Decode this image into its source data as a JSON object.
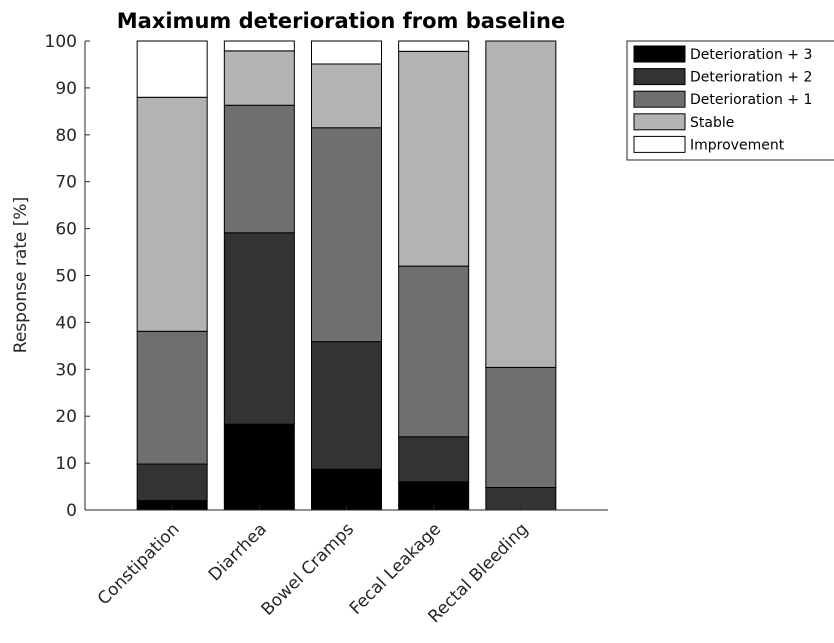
{
  "chart_data": {
    "type": "bar",
    "stacked": true,
    "title": "Maximum deterioration from baseline",
    "xlabel": "",
    "ylabel": "Response rate [%]",
    "ylim": [
      0,
      100
    ],
    "yticks": [
      0,
      10,
      20,
      30,
      40,
      50,
      60,
      70,
      80,
      90,
      100
    ],
    "categories": [
      "Constipation",
      "Diarrhea",
      "Bowel Cramps",
      "Fecal Leakage",
      "Rectal Bleeding"
    ],
    "series": [
      {
        "name": "Deterioration + 3",
        "color": "#000000",
        "values": [
          2,
          18.3,
          8.7,
          6,
          0
        ]
      },
      {
        "name": "Deterioration + 2",
        "color": "#333333",
        "values": [
          7.8,
          40.8,
          27.2,
          9.6,
          4.8
        ]
      },
      {
        "name": "Deterioration + 1",
        "color": "#6f6f6f",
        "values": [
          28.3,
          27.2,
          45.6,
          36.4,
          25.6
        ]
      },
      {
        "name": "Stable",
        "color": "#b3b3b3",
        "values": [
          49.9,
          11.6,
          13.6,
          45.8,
          69.6
        ]
      },
      {
        "name": "Improvement",
        "color": "#ffffff",
        "values": [
          12,
          2.1,
          4.9,
          2.2,
          0
        ]
      }
    ],
    "legend_position": "top-right outside",
    "grid": false
  }
}
